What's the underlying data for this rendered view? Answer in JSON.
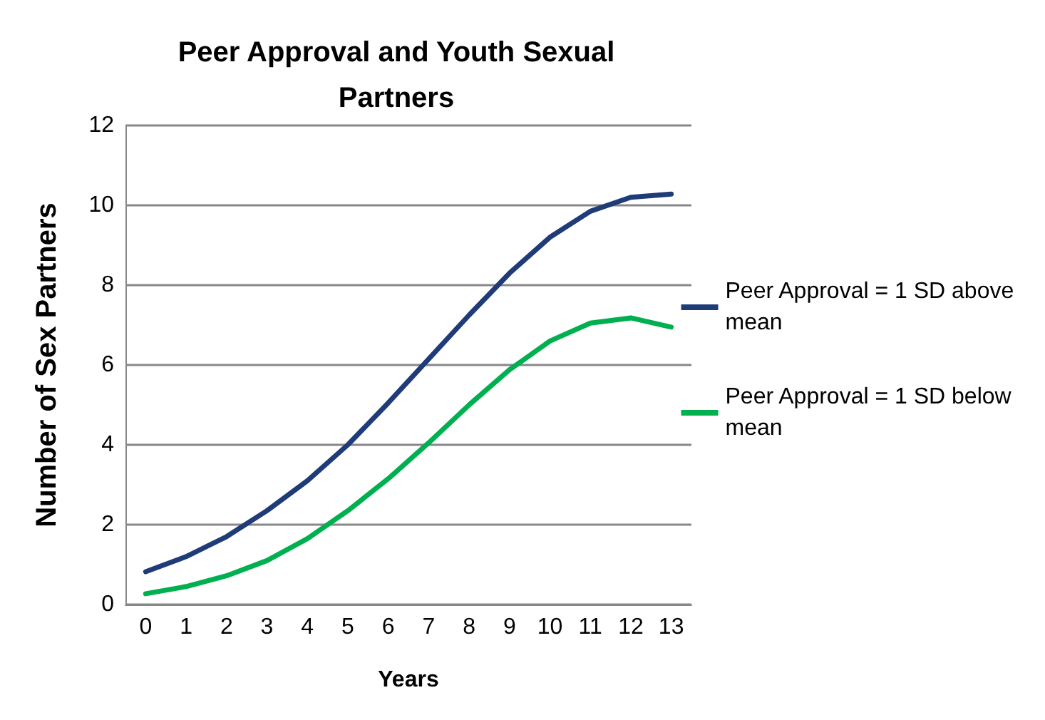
{
  "chart_data": {
    "type": "line",
    "title": "Peer Approval and Youth Sexual\nPartners",
    "xlabel": "Years",
    "ylabel": "Number of Sex Partners",
    "categories": [
      "0",
      "1",
      "2",
      "3",
      "4",
      "5",
      "6",
      "7",
      "8",
      "9",
      "10",
      "11",
      "12",
      "13"
    ],
    "series": [
      {
        "name": "Peer Approval = 1 SD above mean",
        "color": "#1f3c78",
        "values": [
          0.82,
          1.2,
          1.7,
          2.35,
          3.1,
          4.0,
          5.05,
          6.15,
          7.25,
          8.3,
          9.2,
          9.85,
          10.2,
          10.28
        ]
      },
      {
        "name": "Peer Approval = 1 SD below mean",
        "color": "#00b050",
        "values": [
          0.27,
          0.45,
          0.72,
          1.1,
          1.65,
          2.35,
          3.15,
          4.05,
          5.0,
          5.88,
          6.6,
          7.05,
          7.18,
          6.95
        ]
      }
    ],
    "ylim": [
      0,
      12
    ],
    "yticks": [
      0,
      2,
      4,
      6,
      8,
      10,
      12
    ],
    "grid": "y",
    "legend": "right",
    "marker": "none",
    "line_style": "solid"
  }
}
